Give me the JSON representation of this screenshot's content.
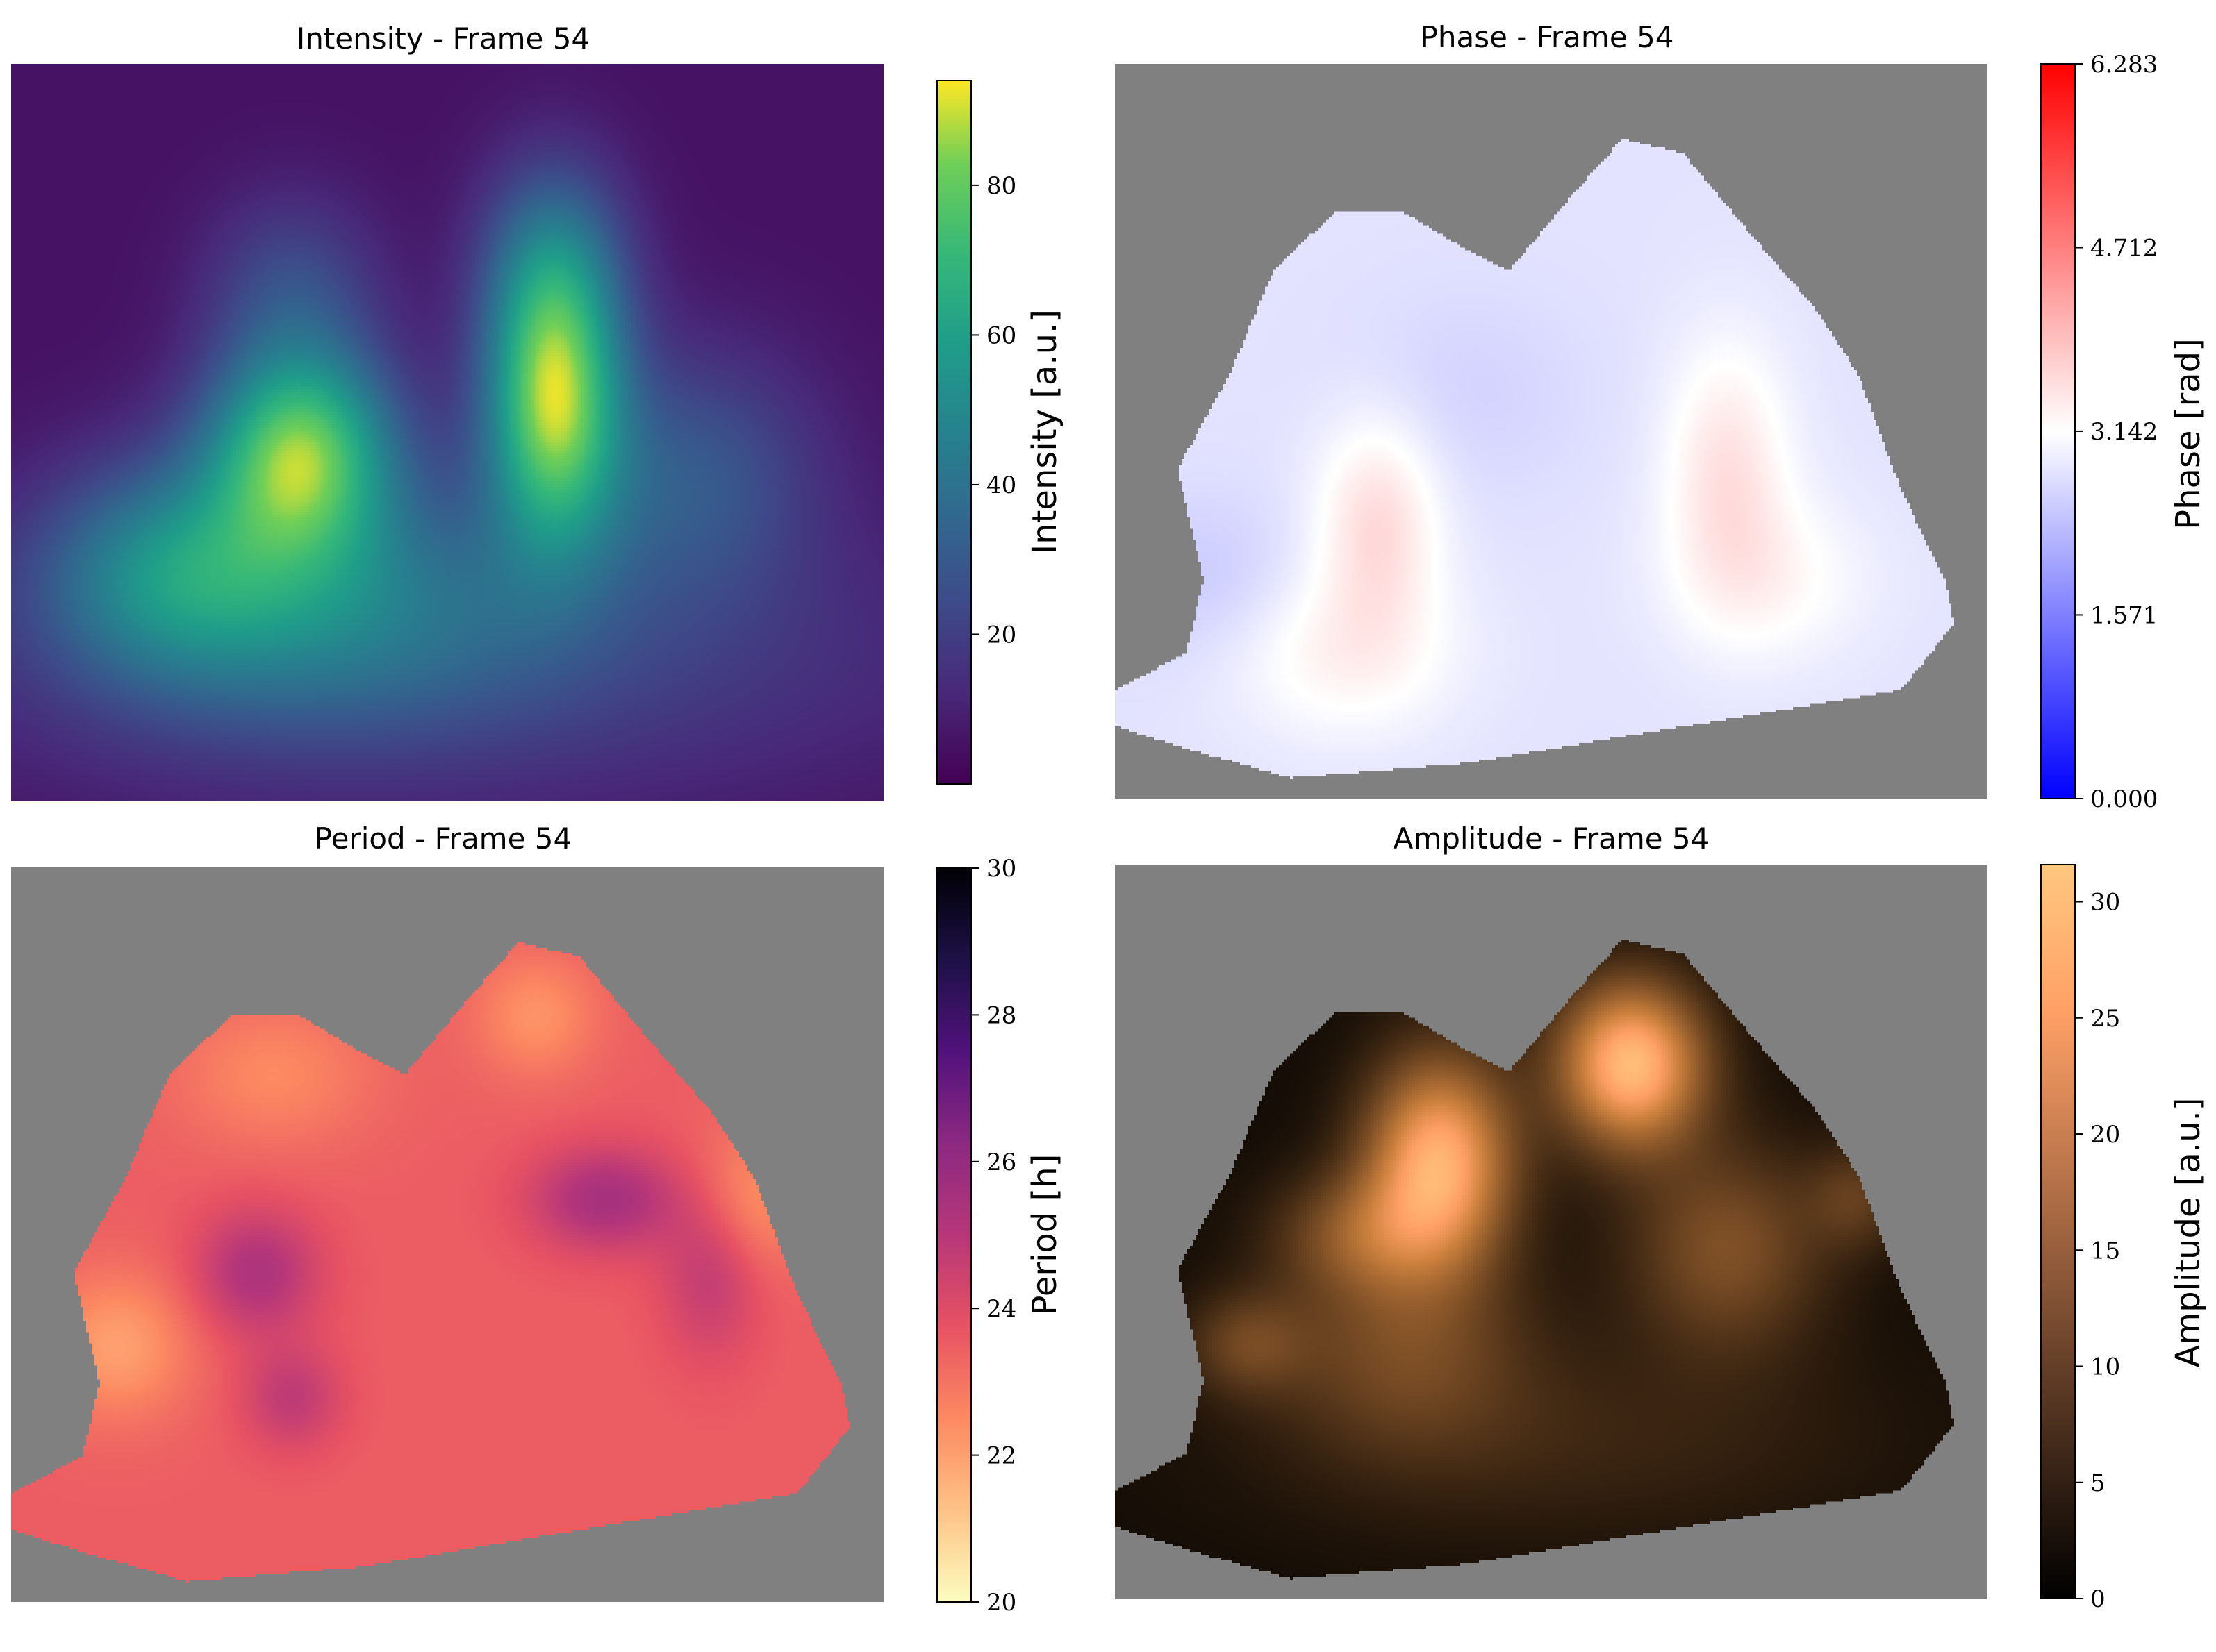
{
  "chart_data": [
    {
      "type": "heatmap",
      "title": "Intensity - Frame 54",
      "colormap": "viridis",
      "colorbar": {
        "label": "Intensity [a.u.]",
        "range": [
          0,
          94
        ],
        "ticks": [
          "20",
          "40",
          "60",
          "80"
        ],
        "tick_values": [
          20,
          40,
          60,
          80
        ]
      },
      "blobs": [
        {
          "x": 0.33,
          "y": 0.52,
          "sx": 0.075,
          "sy": 0.1,
          "value": 70
        },
        {
          "x": 0.62,
          "y": 0.45,
          "sx": 0.055,
          "sy": 0.14,
          "value": 78
        },
        {
          "x": 0.18,
          "y": 0.68,
          "sx": 0.1,
          "sy": 0.1,
          "value": 30
        },
        {
          "x": 0.35,
          "y": 0.72,
          "sx": 0.18,
          "sy": 0.12,
          "value": 28
        },
        {
          "x": 0.62,
          "y": 0.26,
          "sx": 0.06,
          "sy": 0.1,
          "value": 22
        },
        {
          "x": 0.32,
          "y": 0.3,
          "sx": 0.07,
          "sy": 0.09,
          "value": 18
        },
        {
          "x": 0.5,
          "y": 0.8,
          "sx": 0.4,
          "sy": 0.14,
          "value": 16
        },
        {
          "x": 0.78,
          "y": 0.55,
          "sx": 0.1,
          "sy": 0.12,
          "value": 22
        }
      ],
      "background": 5
    },
    {
      "type": "heatmap",
      "title": "Phase - Frame 54",
      "colormap": "bwr",
      "colorbar": {
        "label": "Phase [rad]",
        "range": [
          0,
          6.283
        ],
        "ticks": [
          "0.000",
          "1.571",
          "3.142",
          "4.712",
          "6.283"
        ],
        "tick_values": [
          0,
          1.571,
          3.142,
          4.712,
          6.283
        ]
      },
      "background": 2.8,
      "blobs": [
        {
          "x": 0.3,
          "y": 0.62,
          "sx": 0.05,
          "sy": 0.1,
          "value": 0.8
        },
        {
          "x": 0.26,
          "y": 0.8,
          "sx": 0.09,
          "sy": 0.08,
          "value": 0.5
        },
        {
          "x": 0.7,
          "y": 0.55,
          "sx": 0.05,
          "sy": 0.12,
          "value": 0.7
        },
        {
          "x": 0.75,
          "y": 0.7,
          "sx": 0.08,
          "sy": 0.08,
          "value": 0.4
        },
        {
          "x": 0.1,
          "y": 0.7,
          "sx": 0.08,
          "sy": 0.08,
          "value": -0.3
        },
        {
          "x": 0.4,
          "y": 0.45,
          "sx": 0.1,
          "sy": 0.1,
          "value": -0.2
        }
      ],
      "masked_color": "#808080"
    },
    {
      "type": "heatmap",
      "title": "Period - Frame 54",
      "colormap": "magma_r",
      "colorbar": {
        "label": "Period [h]",
        "range": [
          20,
          30
        ],
        "ticks": [
          "20",
          "22",
          "24",
          "26",
          "28",
          "30"
        ],
        "tick_values": [
          20,
          22,
          24,
          26,
          28,
          30
        ]
      },
      "background": 23.5,
      "blobs": [
        {
          "x": 0.28,
          "y": 0.55,
          "sx": 0.05,
          "sy": 0.06,
          "value": 1.8
        },
        {
          "x": 0.32,
          "y": 0.72,
          "sx": 0.04,
          "sy": 0.05,
          "value": 1.3
        },
        {
          "x": 0.68,
          "y": 0.45,
          "sx": 0.06,
          "sy": 0.05,
          "value": 2.0
        },
        {
          "x": 0.8,
          "y": 0.55,
          "sx": 0.04,
          "sy": 0.08,
          "value": 1.3
        },
        {
          "x": 0.12,
          "y": 0.65,
          "sx": 0.06,
          "sy": 0.07,
          "value": -1.5
        },
        {
          "x": 0.6,
          "y": 0.2,
          "sx": 0.05,
          "sy": 0.06,
          "value": -1.2
        },
        {
          "x": 0.85,
          "y": 0.45,
          "sx": 0.05,
          "sy": 0.07,
          "value": -1.2
        },
        {
          "x": 0.3,
          "y": 0.28,
          "sx": 0.08,
          "sy": 0.07,
          "value": -1.0
        }
      ],
      "masked_color": "#808080"
    },
    {
      "type": "heatmap",
      "title": "Amplitude - Frame 54",
      "colormap": "copper",
      "colorbar": {
        "label": "Amplitude [a.u.]",
        "range": [
          0,
          31.6
        ],
        "ticks": [
          "0",
          "5",
          "10",
          "15",
          "20",
          "25",
          "30"
        ],
        "tick_values": [
          0,
          5,
          10,
          15,
          20,
          25,
          30
        ]
      },
      "background": 2,
      "blobs": [
        {
          "x": 0.37,
          "y": 0.4,
          "sx": 0.06,
          "sy": 0.1,
          "value": 26
        },
        {
          "x": 0.59,
          "y": 0.27,
          "sx": 0.06,
          "sy": 0.08,
          "value": 28
        },
        {
          "x": 0.28,
          "y": 0.5,
          "sx": 0.07,
          "sy": 0.06,
          "value": 10
        },
        {
          "x": 0.33,
          "y": 0.65,
          "sx": 0.1,
          "sy": 0.1,
          "value": 9
        },
        {
          "x": 0.7,
          "y": 0.52,
          "sx": 0.08,
          "sy": 0.1,
          "value": 11
        },
        {
          "x": 0.15,
          "y": 0.65,
          "sx": 0.05,
          "sy": 0.05,
          "value": 8
        },
        {
          "x": 0.85,
          "y": 0.45,
          "sx": 0.04,
          "sy": 0.05,
          "value": 7
        },
        {
          "x": 0.52,
          "y": 0.78,
          "sx": 0.25,
          "sy": 0.1,
          "value": 4
        }
      ],
      "masked_color": "#808080"
    }
  ]
}
